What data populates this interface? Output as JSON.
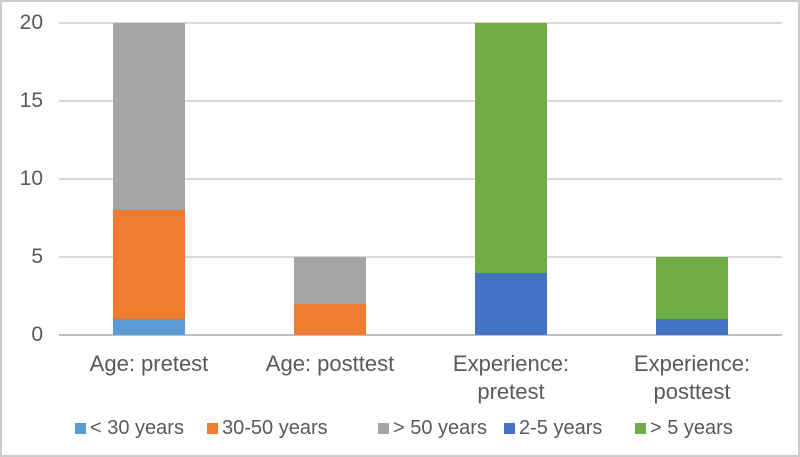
{
  "chart_data": {
    "type": "bar",
    "stacked": true,
    "title": "",
    "xlabel": "",
    "ylabel": "",
    "categories": [
      "Age: pretest",
      "Age: posttest",
      "Experience: pretest",
      "Experience: posttest"
    ],
    "category_label_lines": [
      [
        "Age: pretest"
      ],
      [
        "Age: posttest"
      ],
      [
        "Experience:",
        "pretest"
      ],
      [
        "Experience:",
        "posttest"
      ]
    ],
    "series": [
      {
        "name": "< 30 years",
        "color": "#5B9BD5",
        "values": [
          1,
          0,
          0,
          0
        ]
      },
      {
        "name": "30-50 years",
        "color": "#ED7D31",
        "values": [
          7,
          2,
          0,
          0
        ]
      },
      {
        "name": "> 50 years",
        "color": "#A5A5A5",
        "values": [
          12,
          3,
          0,
          0
        ]
      },
      {
        "name": "2-5 years",
        "color": "#4472C4",
        "values": [
          0,
          0,
          4,
          1
        ]
      },
      {
        "name": "> 5 years",
        "color": "#70AD47",
        "values": [
          0,
          0,
          16,
          4
        ]
      }
    ],
    "category_totals": [
      20,
      5,
      20,
      5
    ],
    "y_axis": {
      "min": 0,
      "max": 20,
      "ticks": [
        0,
        5,
        10,
        15,
        20
      ],
      "gridlines": true
    },
    "legend": {
      "position": "bottom"
    },
    "colors": {
      "text": "#595959",
      "gridline": "#D9D9D9",
      "axis_line": "#BFBFBF",
      "background": "#FFFFFF",
      "border": "#CACACA"
    }
  }
}
